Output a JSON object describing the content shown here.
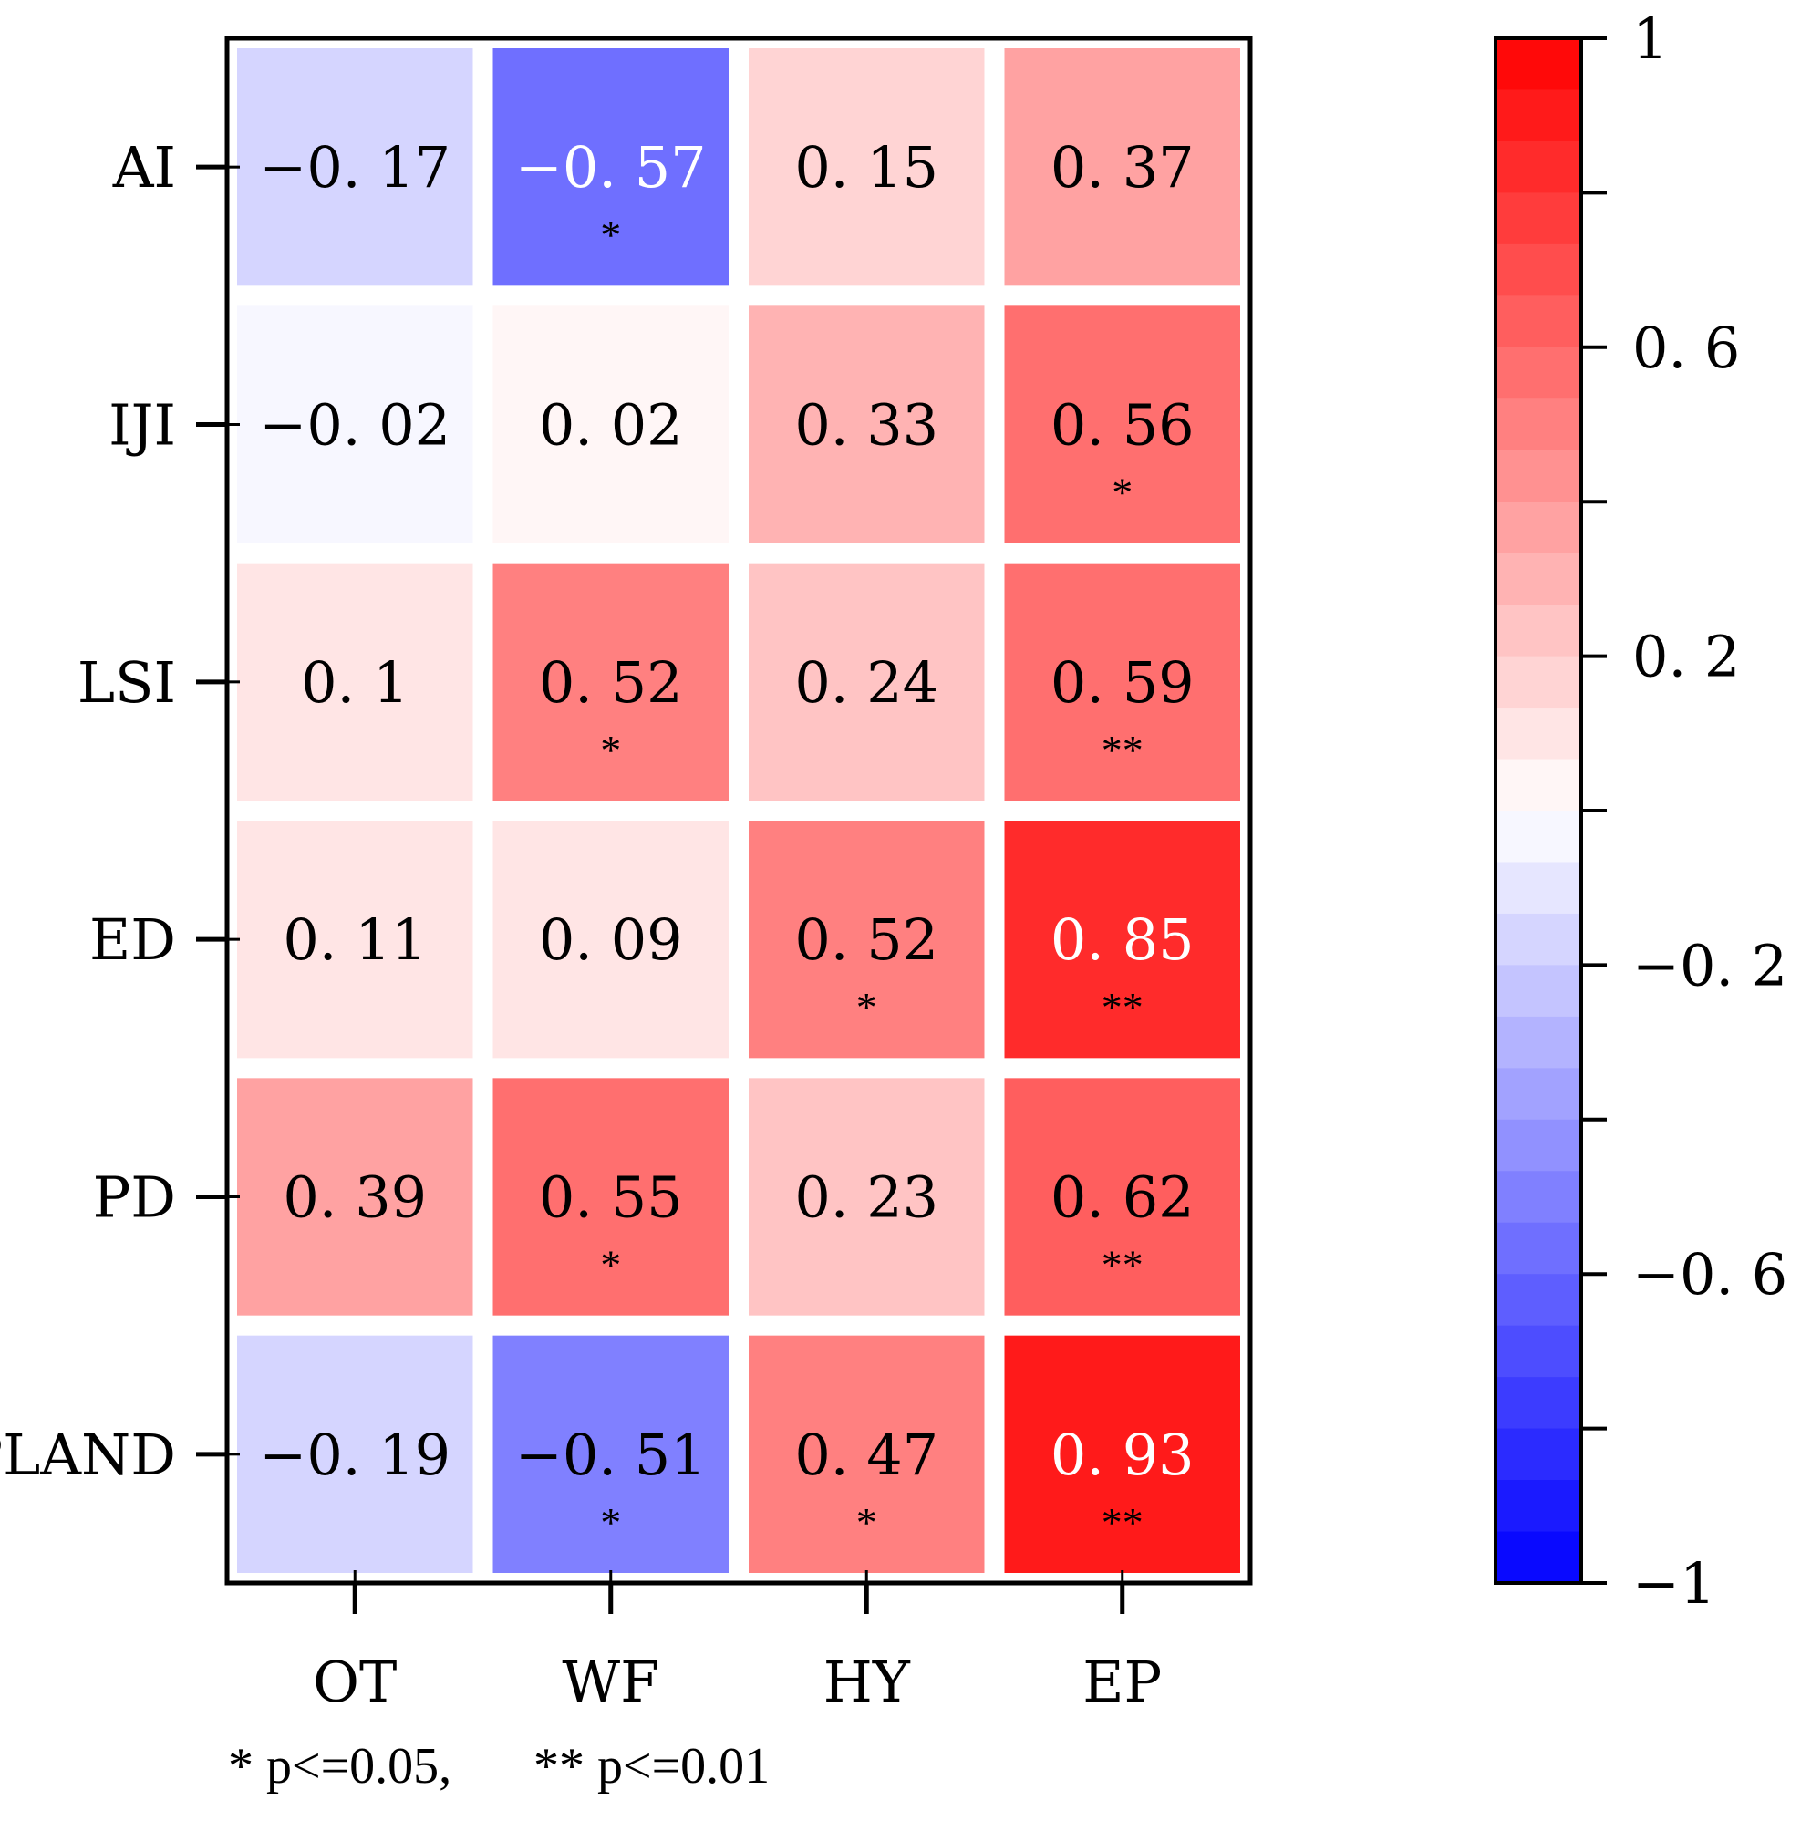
{
  "chart_data": {
    "type": "heatmap",
    "rows": [
      "AI",
      "IJI",
      "LSI",
      "ED",
      "PD",
      "PLAND"
    ],
    "columns": [
      "OT",
      "WF",
      "HY",
      "EP"
    ],
    "values": [
      [
        -0.17,
        -0.57,
        0.15,
        0.37
      ],
      [
        -0.02,
        0.02,
        0.33,
        0.56
      ],
      [
        0.1,
        0.52,
        0.24,
        0.59
      ],
      [
        0.11,
        0.09,
        0.52,
        0.85
      ],
      [
        0.39,
        0.55,
        0.23,
        0.62
      ],
      [
        -0.19,
        -0.51,
        0.47,
        0.93
      ]
    ],
    "labels": [
      [
        "−0. 17",
        "−0. 57",
        "0. 15",
        "0. 37"
      ],
      [
        "−0. 02",
        "0. 02",
        "0. 33",
        "0. 56"
      ],
      [
        "0. 1",
        "0. 52",
        "0. 24",
        "0. 59"
      ],
      [
        "0. 11",
        "0. 09",
        "0. 52",
        "0. 85"
      ],
      [
        "0. 39",
        "0. 55",
        "0. 23",
        "0. 62"
      ],
      [
        "−0. 19",
        "−0. 51",
        "0. 47",
        "0. 93"
      ]
    ],
    "significance": [
      [
        "",
        "*",
        "",
        ""
      ],
      [
        "",
        "",
        "",
        "*"
      ],
      [
        "",
        "*",
        "",
        "**"
      ],
      [
        "",
        "",
        "*",
        "**"
      ],
      [
        "",
        "*",
        "",
        "**"
      ],
      [
        "",
        "*",
        "*",
        "**"
      ]
    ],
    "colorbar": {
      "range": [
        -1,
        1
      ],
      "ticks": [
        1,
        0.6,
        0.2,
        -0.2,
        -0.6,
        -1
      ],
      "tick_labels": [
        "1",
        "0. 6",
        "0. 2",
        "−0. 2",
        "−0. 6",
        "−1"
      ],
      "low_color": "#0000ff",
      "mid_color": "#ffffff",
      "high_color": "#ff0000",
      "levels": 30
    },
    "footnote": [
      "* p<=0.05,",
      "** p<=0.01"
    ]
  }
}
